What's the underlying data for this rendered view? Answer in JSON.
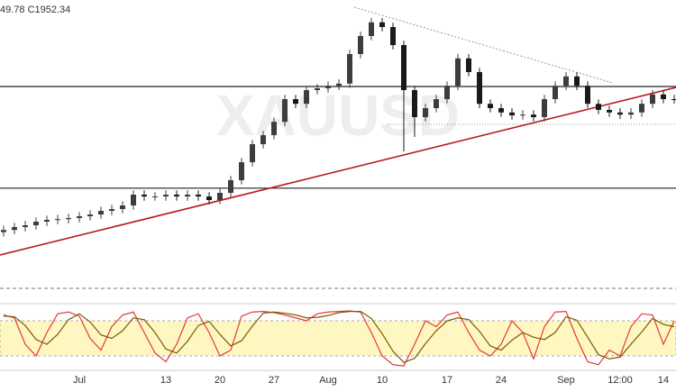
{
  "chart_data": [
    {
      "type": "candlestick",
      "legend_text": "49.78 C1952.34",
      "watermark": "XAUUSD",
      "categories": [
        null,
        null,
        null,
        null,
        null,
        null,
        null,
        "Jul",
        null,
        null,
        null,
        null,
        null,
        null,
        null,
        "13",
        null,
        null,
        null,
        null,
        "20",
        null,
        null,
        null,
        null,
        "27",
        null,
        null,
        null,
        null,
        "Aug",
        null,
        null,
        null,
        null,
        "10",
        null,
        null,
        null,
        null,
        null,
        "17",
        null,
        null,
        null,
        null,
        "24",
        null,
        null,
        null,
        null,
        null,
        "Sep",
        null,
        null,
        null,
        null,
        "12:00",
        null,
        null,
        null,
        "14",
        null
      ],
      "open": [
        1768,
        1771,
        1775,
        1777.5,
        1782.5,
        1785,
        1786,
        1787.5,
        1790,
        1792.5,
        1797.5,
        1800,
        1805,
        1820,
        1817.5,
        1817.5,
        1820,
        1817.5,
        1820,
        1817.5,
        1812.5,
        1822.5,
        1840,
        1865,
        1890,
        1902.5,
        1921,
        1952.5,
        1946,
        1965,
        1967.5,
        1971,
        1974,
        2015,
        2040,
        2059,
        2052.5,
        2027.5,
        1965,
        1927.5,
        1940,
        1952.5,
        1971,
        2009,
        1990,
        1946,
        1940,
        1934,
        1930,
        1931,
        1927.5,
        1952.5,
        1971,
        1984,
        1971,
        1946,
        1937.5,
        1934,
        1931,
        1934,
        1946,
        1959,
        1952.5
      ],
      "high": [
        1777,
        1781,
        1783.5,
        1788.5,
        1791,
        1792,
        1793.5,
        1796,
        1798.5,
        1803.5,
        1806,
        1811,
        1826,
        1826,
        1823.5,
        1826,
        1826,
        1826,
        1826,
        1823.5,
        1828.5,
        1846,
        1871,
        1896,
        1908.5,
        1927,
        1958.5,
        1958.5,
        1971,
        1973.5,
        1977,
        1980,
        2021,
        2046,
        2065,
        2065,
        2058.5,
        2033.5,
        1971,
        1946,
        1958.5,
        1977,
        2015,
        2015,
        1996,
        1952,
        1946,
        1940,
        1937,
        1937,
        1958.5,
        1977,
        1990,
        1990,
        1977,
        1952,
        1943.5,
        1940,
        1940,
        1952,
        1965,
        1965,
        1958.5
      ],
      "low": [
        1762,
        1765,
        1769,
        1771.5,
        1776.5,
        1779,
        1780,
        1781.5,
        1784,
        1786.5,
        1791.5,
        1794,
        1799,
        1811.5,
        1811.5,
        1811.5,
        1811.5,
        1811.5,
        1811.5,
        1806.5,
        1806.5,
        1816.5,
        1834,
        1859,
        1884,
        1896.5,
        1915,
        1940,
        1940,
        1959,
        1961.5,
        1965,
        1968,
        2009,
        2034,
        2046.5,
        2021.5,
        1880,
        1900,
        1921.5,
        1934,
        1946.5,
        1965,
        1984,
        1940,
        1934,
        1928,
        1924,
        1924,
        1921.5,
        1921.5,
        1946.5,
        1965,
        1965,
        1940,
        1931.5,
        1928,
        1925,
        1925,
        1928,
        1940,
        1946.5,
        1946.34
      ],
      "close": [
        1771,
        1775,
        1777.5,
        1782.5,
        1785,
        1786,
        1787.5,
        1790,
        1792.5,
        1797.5,
        1800,
        1805,
        1820,
        1817.5,
        1817.5,
        1820,
        1817.5,
        1820,
        1817.5,
        1812.5,
        1822.5,
        1840,
        1865,
        1890,
        1902.5,
        1921,
        1952.5,
        1946,
        1965,
        1967.5,
        1971,
        1974,
        2015,
        2040,
        2059,
        2052.5,
        2027.5,
        1965,
        1927.5,
        1940,
        1952.5,
        1971,
        2009,
        1990,
        1946,
        1940,
        1934,
        1930,
        1931,
        1927.5,
        1952.5,
        1971,
        1984,
        1971,
        1946,
        1937.5,
        1934,
        1931,
        1934,
        1946,
        1959,
        1952.5,
        1952.34
      ],
      "up_color": "#3d3d3d",
      "down_color": "#1a1a1a",
      "ylim": [
        1715,
        2090
      ],
      "hlines": [
        1970,
        1829
      ]
    },
    {
      "type": "line",
      "ylim": [
        0,
        100
      ],
      "bands": [
        20,
        80
      ],
      "series": [
        {
          "color": "#e53935",
          "values": [
            90,
            85,
            40,
            20,
            60,
            92,
            95,
            88,
            50,
            30,
            70,
            90,
            95,
            60,
            25,
            10,
            40,
            85,
            92,
            60,
            20,
            30,
            88,
            95,
            96,
            94,
            90,
            85,
            80,
            92,
            95,
            96,
            97,
            95,
            60,
            20,
            5,
            3,
            40,
            80,
            70,
            90,
            95,
            60,
            30,
            20,
            40,
            80,
            60,
            15,
            70,
            95,
            96,
            50,
            10,
            5,
            30,
            20,
            70,
            92,
            90,
            40,
            80
          ]
        },
        {
          "color": "#7a5a00",
          "values": [
            88,
            87,
            72,
            48,
            40,
            57,
            82,
            92,
            78,
            56,
            50,
            63,
            85,
            82,
            60,
            32,
            25,
            45,
            72,
            79,
            57,
            37,
            46,
            71,
            93,
            95,
            93,
            90,
            85,
            86,
            89,
            94,
            96,
            96,
            84,
            58,
            28,
            9,
            16,
            41,
            63,
            80,
            85,
            82,
            62,
            37,
            30,
            47,
            60,
            52,
            48,
            60,
            87,
            81,
            52,
            22,
            15,
            18,
            40,
            61,
            84,
            74,
            70
          ]
        }
      ]
    }
  ]
}
